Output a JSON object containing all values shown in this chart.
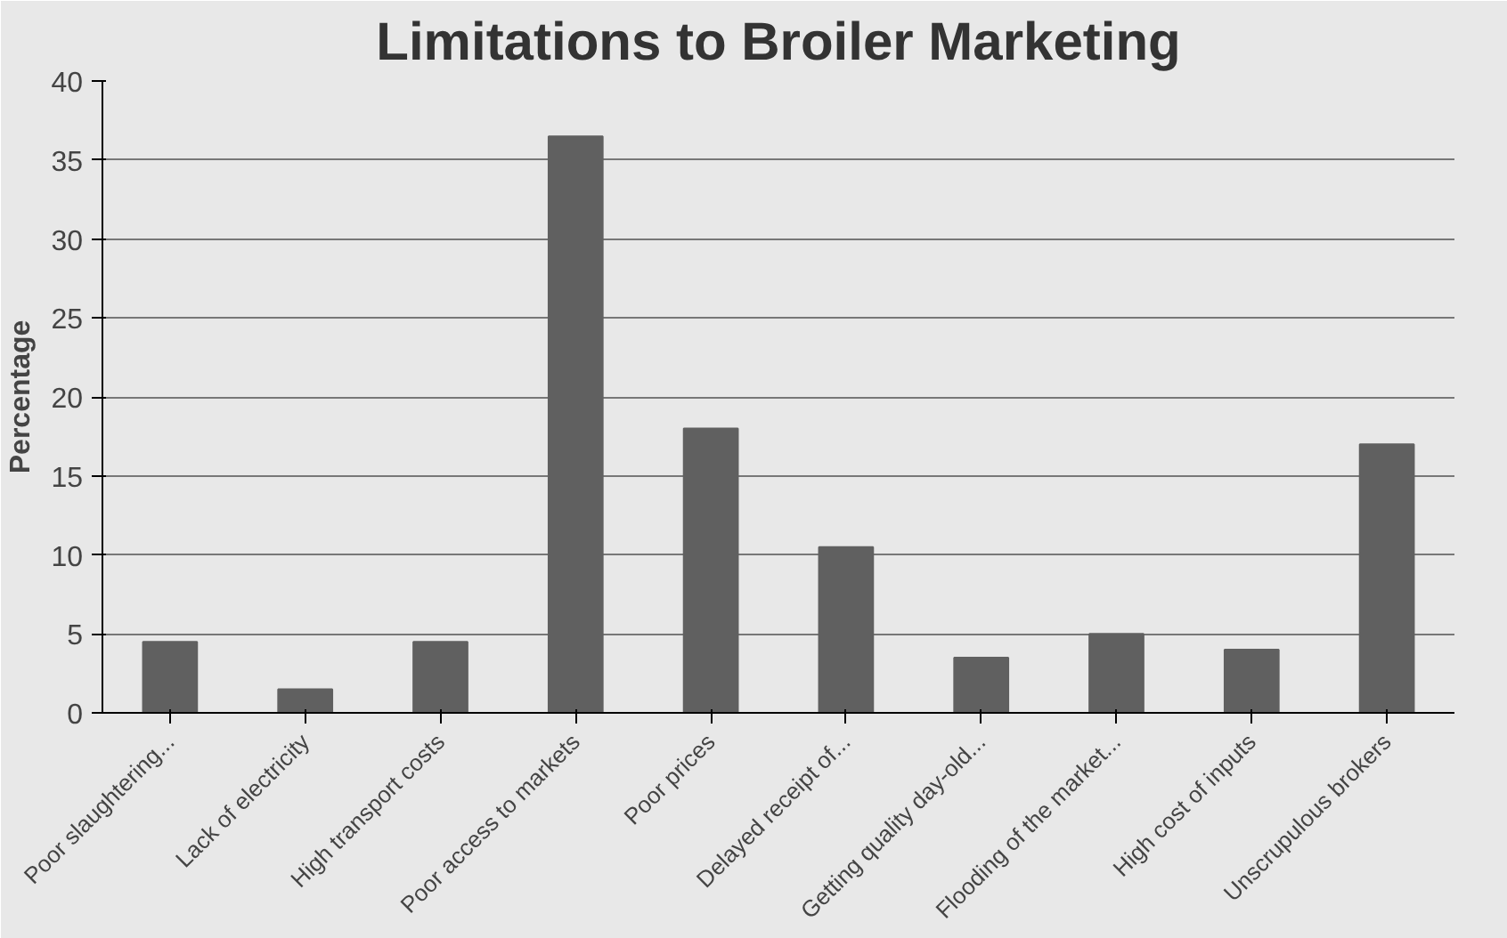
{
  "chart_data": {
    "type": "bar",
    "title": "Limitations to Broiler Marketing",
    "ylabel": "Percentage",
    "categories": [
      "Poor slaughtering...",
      "Lack of electricity",
      "High transport costs",
      "Poor access to markets",
      "Poor prices",
      "Delayed receipt of...",
      "Getting quality day-old...",
      "Flooding of the market...",
      "High cost of inputs",
      "Unscrupulous brokers"
    ],
    "values": [
      4.5,
      1.5,
      4.5,
      36.5,
      18,
      10.5,
      3.5,
      5,
      4,
      17
    ],
    "color": "#606060",
    "ylim": [
      0,
      40
    ],
    "yticks": [
      0,
      5,
      10,
      15,
      20,
      25,
      30,
      35,
      40
    ],
    "grid": "y"
  }
}
